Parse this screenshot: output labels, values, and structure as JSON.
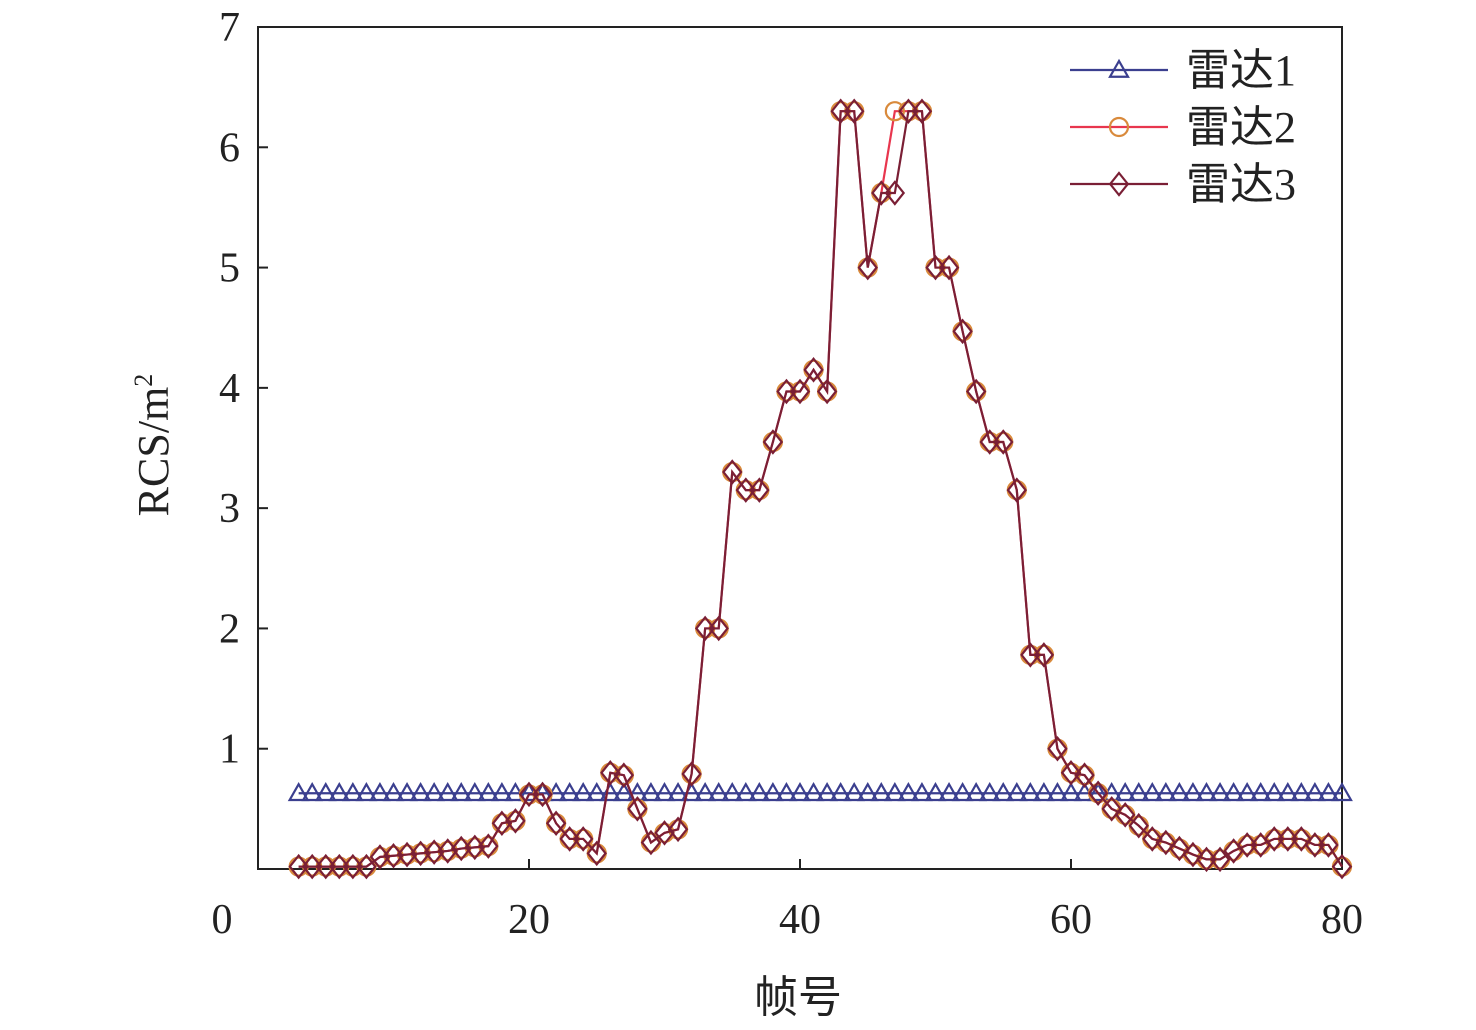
{
  "chart_data": {
    "type": "line",
    "title": "",
    "xlabel": "帧号",
    "ylabel_base": "RCS/m",
    "ylabel_sup": "2",
    "xlim": [
      0,
      80
    ],
    "ylim": [
      0,
      7
    ],
    "x_ticks": [
      "0",
      "20",
      "40",
      "60",
      "80"
    ],
    "y_ticks": [
      "1",
      "2",
      "3",
      "4",
      "5",
      "6",
      "7"
    ],
    "grid": false,
    "legend_position": "top-right",
    "x": [
      3,
      4,
      5,
      6,
      7,
      8,
      9,
      10,
      11,
      12,
      13,
      14,
      15,
      16,
      17,
      18,
      19,
      20,
      21,
      22,
      23,
      24,
      25,
      26,
      27,
      28,
      29,
      30,
      31,
      32,
      33,
      34,
      35,
      36,
      37,
      38,
      39,
      40,
      41,
      42,
      43,
      44,
      45,
      46,
      47,
      48,
      49,
      50,
      51,
      52,
      53,
      54,
      55,
      56,
      57,
      58,
      59,
      60,
      61,
      62,
      63,
      64,
      65,
      66,
      67,
      68,
      69,
      70,
      71,
      72,
      73,
      74,
      75,
      76,
      77,
      78,
      79,
      80
    ],
    "series": [
      {
        "name": "雷达1",
        "color": "#3b3f8f",
        "marker": "triangle",
        "values": [
          0.63,
          0.63,
          0.63,
          0.63,
          0.63,
          0.63,
          0.63,
          0.63,
          0.63,
          0.63,
          0.63,
          0.63,
          0.63,
          0.63,
          0.63,
          0.63,
          0.63,
          0.63,
          0.63,
          0.63,
          0.63,
          0.63,
          0.63,
          0.63,
          0.63,
          0.63,
          0.63,
          0.63,
          0.63,
          0.63,
          0.63,
          0.63,
          0.63,
          0.63,
          0.63,
          0.63,
          0.63,
          0.63,
          0.63,
          0.63,
          0.63,
          0.63,
          0.63,
          0.63,
          0.63,
          0.63,
          0.63,
          0.63,
          0.63,
          0.63,
          0.63,
          0.63,
          0.63,
          0.63,
          0.63,
          0.63,
          0.63,
          0.63,
          0.63,
          0.63,
          0.63,
          0.63,
          0.63,
          0.63,
          0.63,
          0.63,
          0.63,
          0.63,
          0.63,
          0.63,
          0.63,
          0.63,
          0.63,
          0.63,
          0.63,
          0.63,
          0.63,
          0.63
        ]
      },
      {
        "name": "雷达2",
        "color": "#e8364e",
        "marker_color": "#d98a3c",
        "marker": "circle",
        "values": [
          0.02,
          0.02,
          0.02,
          0.02,
          0.02,
          0.02,
          0.1,
          0.11,
          0.12,
          0.13,
          0.14,
          0.15,
          0.17,
          0.18,
          0.19,
          0.38,
          0.4,
          0.62,
          0.62,
          0.38,
          0.25,
          0.25,
          0.13,
          0.8,
          0.78,
          0.5,
          0.22,
          0.3,
          0.33,
          0.79,
          2.0,
          2.0,
          3.3,
          3.15,
          3.15,
          3.55,
          3.97,
          3.97,
          4.15,
          3.97,
          6.3,
          6.3,
          5.0,
          5.62,
          6.3,
          6.3,
          6.3,
          5.0,
          5.0,
          4.47,
          3.97,
          3.55,
          3.55,
          3.15,
          1.78,
          1.78,
          1.0,
          0.8,
          0.78,
          0.63,
          0.5,
          0.45,
          0.36,
          0.25,
          0.22,
          0.17,
          0.12,
          0.08,
          0.08,
          0.15,
          0.2,
          0.2,
          0.25,
          0.25,
          0.25,
          0.2,
          0.2,
          0.02
        ]
      },
      {
        "name": "雷达3",
        "color": "#7a1f35",
        "marker": "diamond",
        "values": [
          0.02,
          0.02,
          0.02,
          0.02,
          0.02,
          0.02,
          0.1,
          0.11,
          0.12,
          0.13,
          0.14,
          0.15,
          0.17,
          0.18,
          0.19,
          0.38,
          0.4,
          0.62,
          0.62,
          0.38,
          0.25,
          0.25,
          0.13,
          0.8,
          0.78,
          0.5,
          0.22,
          0.3,
          0.33,
          0.79,
          2.0,
          2.0,
          3.3,
          3.15,
          3.15,
          3.55,
          3.97,
          3.97,
          4.15,
          3.97,
          6.3,
          6.3,
          5.0,
          5.62,
          5.62,
          6.3,
          6.3,
          5.0,
          5.0,
          4.47,
          3.97,
          3.55,
          3.55,
          3.15,
          1.78,
          1.78,
          1.0,
          0.8,
          0.78,
          0.63,
          0.5,
          0.45,
          0.36,
          0.25,
          0.22,
          0.17,
          0.12,
          0.08,
          0.08,
          0.15,
          0.2,
          0.2,
          0.25,
          0.25,
          0.25,
          0.2,
          0.2,
          0.02
        ]
      }
    ]
  }
}
